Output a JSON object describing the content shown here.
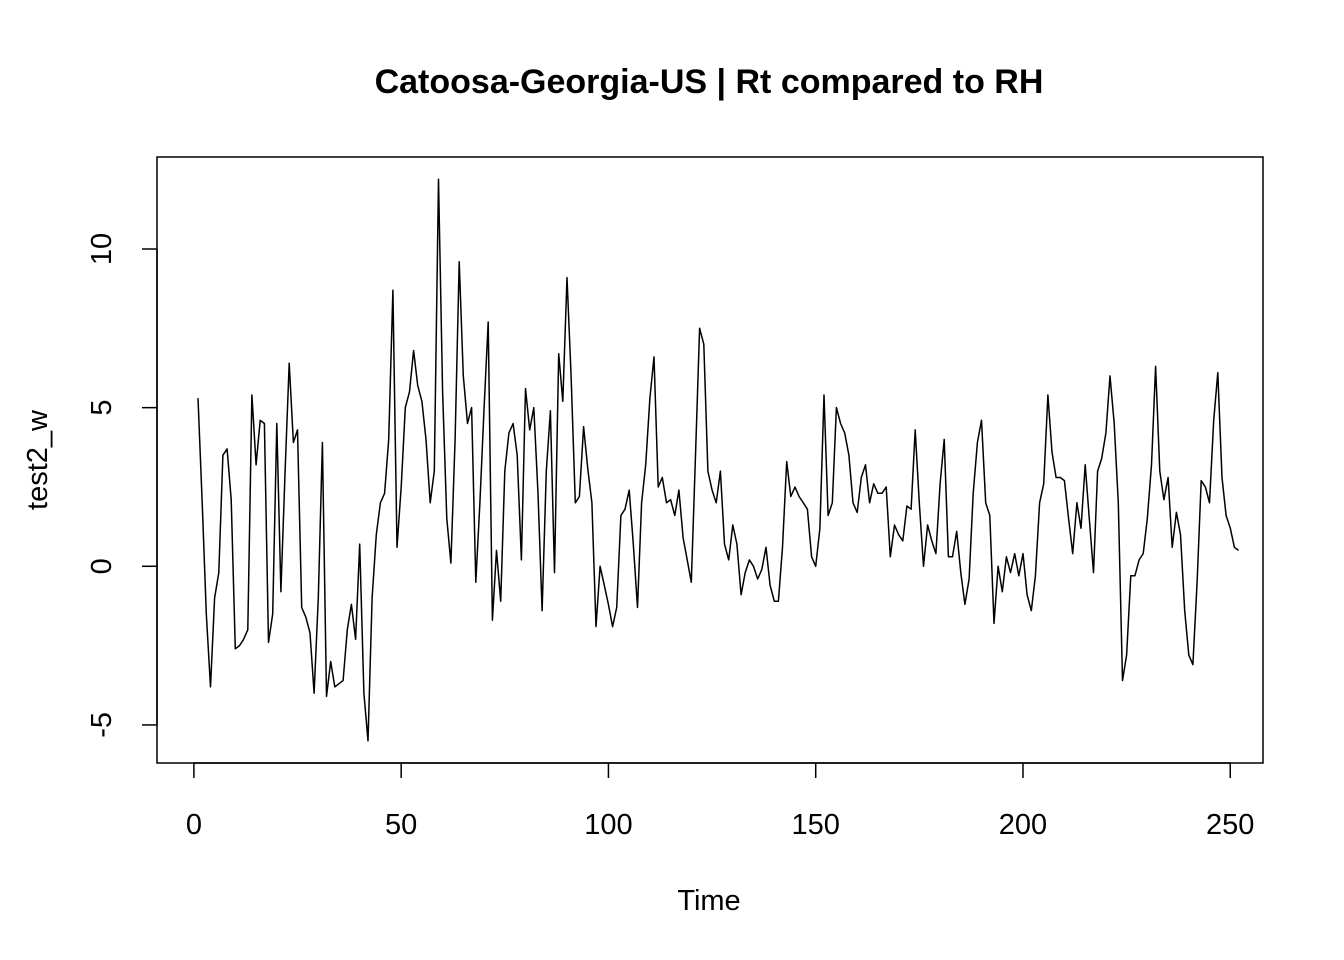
{
  "chart_data": {
    "type": "line",
    "title": "Catoosa-Georgia-US | Rt compared to RH",
    "xlabel": "Time",
    "ylabel": "test2_w",
    "xlim": [
      1,
      248
    ],
    "ylim": [
      -5.5,
      12.2
    ],
    "grid": false,
    "xticks": [
      0,
      50,
      100,
      150,
      200,
      250
    ],
    "yticks": [
      -5,
      0,
      5,
      10
    ],
    "series": [
      {
        "values": [
          5.3,
          2.0,
          -1.5,
          -3.8,
          -1.0,
          -0.2,
          3.5,
          3.7,
          2.1,
          -2.6,
          -2.5,
          -2.3,
          -2.0,
          5.4,
          3.2,
          4.6,
          4.5,
          -2.4,
          -1.5,
          4.5,
          -0.8,
          3.0,
          6.4,
          3.9,
          4.3,
          -1.3,
          -1.6,
          -2.1,
          -4.0,
          -1.0,
          3.9,
          -4.1,
          -3.0,
          -3.8,
          -3.7,
          -3.6,
          -2.0,
          -1.2,
          -2.3,
          0.7,
          -4.0,
          -5.5,
          -1.0,
          1.0,
          2.0,
          2.3,
          4.0,
          8.7,
          0.6,
          2.5,
          5.0,
          5.5,
          6.8,
          5.7,
          5.2,
          4.0,
          2.0,
          3.0,
          12.2,
          5.5,
          1.5,
          0.1,
          4.0,
          9.6,
          6.0,
          4.5,
          5.0,
          -0.5,
          2.0,
          5.0,
          7.7,
          -1.7,
          0.5,
          -1.1,
          3.0,
          4.2,
          4.5,
          3.5,
          0.2,
          5.6,
          4.3,
          5.0,
          2.3,
          -1.4,
          3.0,
          4.9,
          -0.2,
          6.7,
          5.2,
          9.1,
          6.0,
          2.0,
          2.2,
          4.4,
          3.1,
          2.0,
          -1.9,
          0.0,
          -0.6,
          -1.2,
          -1.9,
          -1.3,
          1.6,
          1.8,
          2.4,
          0.7,
          -1.3,
          2.0,
          3.2,
          5.3,
          6.6,
          2.5,
          2.8,
          2.0,
          2.1,
          1.6,
          2.4,
          0.9,
          0.2,
          -0.5,
          3.5,
          7.5,
          7.0,
          3.0,
          2.4,
          2.0,
          3.0,
          0.7,
          0.2,
          1.3,
          0.7,
          -0.9,
          -0.2,
          0.2,
          0.0,
          -0.4,
          -0.1,
          0.6,
          -0.6,
          -1.1,
          -1.1,
          0.6,
          3.3,
          2.2,
          2.5,
          2.2,
          2.0,
          1.8,
          0.3,
          0.0,
          1.2,
          5.4,
          1.6,
          2.0,
          5.0,
          4.5,
          4.2,
          3.5,
          2.0,
          1.7,
          2.8,
          3.2,
          2.0,
          2.6,
          2.3,
          2.3,
          2.5,
          0.3,
          1.3,
          1.0,
          0.8,
          1.9,
          1.8,
          4.3,
          2.0,
          0.0,
          1.3,
          0.8,
          0.4,
          2.6,
          4.0,
          0.3,
          0.3,
          1.1,
          -0.2,
          -1.2,
          -0.4,
          2.3,
          3.9,
          4.6,
          2.0,
          1.6,
          -1.8,
          0.0,
          -0.8,
          0.3,
          -0.2,
          0.4,
          -0.3,
          0.4,
          -0.9,
          -1.4,
          -0.3,
          2.0,
          2.6,
          5.4,
          3.6,
          2.8,
          2.8,
          2.7,
          1.5,
          0.4,
          2.0,
          1.2,
          3.2,
          1.5,
          -0.2,
          3.0,
          3.4,
          4.2,
          6.0,
          4.5,
          2.0,
          -3.6,
          -2.8,
          -0.3,
          -0.3,
          0.2,
          0.4,
          1.5,
          3.2,
          6.3,
          3.0,
          2.1,
          2.8,
          0.6,
          1.7,
          1.0,
          -1.4,
          -2.8,
          -3.1,
          -0.5,
          2.7,
          2.5,
          2.0,
          4.6,
          6.1,
          2.8,
          1.6,
          1.2,
          0.6,
          0.5
        ]
      }
    ]
  }
}
